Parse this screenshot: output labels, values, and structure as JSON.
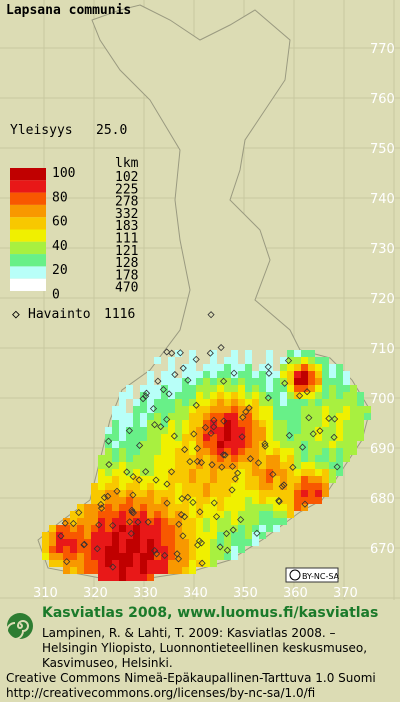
{
  "title": "Lapsana communis",
  "frequency": {
    "label": "Yleisyys",
    "value": "25.0"
  },
  "legend": {
    "scale": [
      100,
      80,
      60,
      40,
      20,
      0
    ],
    "count_header": "lkm",
    "counts": [
      102,
      225,
      278,
      332,
      183,
      111,
      121,
      128,
      178,
      470
    ],
    "colors": [
      "#c00000",
      "#e81818",
      "#f85800",
      "#f89800",
      "#f8c800",
      "#f0f000",
      "#a8f040",
      "#68f088",
      "#b8fff8",
      "#ffffff"
    ]
  },
  "observations": {
    "label": "Havainto",
    "value": "1116"
  },
  "y_ticks": [
    770,
    760,
    750,
    740,
    730,
    720,
    710,
    700,
    690,
    680,
    670
  ],
  "x_ticks": [
    310,
    320,
    330,
    340,
    350,
    360,
    370
  ],
  "license_badge": "BY-NC-SA",
  "footer": {
    "heading": "Kasviatlas 2008, www.luomus.fi/kasviatlas",
    "citation": [
      "Lampinen, R. & Lahti, T. 2009: Kasviatlas 2008. –",
      "Helsingin Yliopisto, Luonnontieteellinen keskusmuseo,",
      "Kasvimuseo, Helsinki."
    ],
    "license": [
      "Creative Commons Nimeä-Epäkaupallinen-Tarttuva 1.0 Suomi",
      "http://creativecommons.org/licenses/by-nc-sa/1.0/fi"
    ]
  }
}
